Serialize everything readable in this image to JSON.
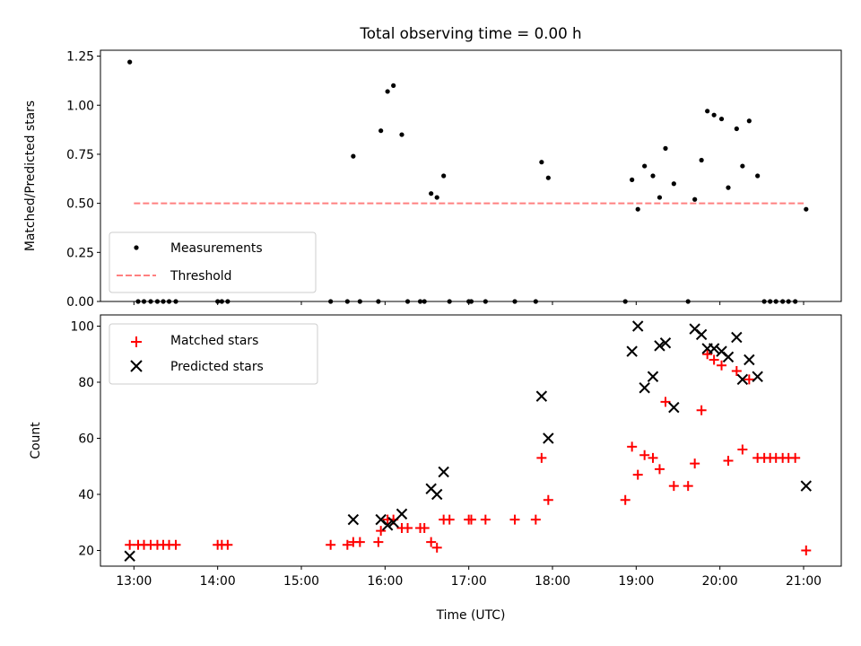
{
  "chart_data": [
    {
      "type": "scatter",
      "title": "Total observing time = 0.00 h",
      "ylabel": "Matched/Predicted stars",
      "xlabel": "",
      "ylim": [
        0,
        1.28
      ],
      "xlim": [
        12.6,
        21.45
      ],
      "yticks": [
        0,
        0.25,
        0.5,
        0.75,
        1.0,
        1.25
      ],
      "ytick_labels": [
        "0.00",
        "0.25",
        "0.50",
        "0.75",
        "1.00",
        "1.25"
      ],
      "xticks": [
        13,
        14,
        15,
        16,
        17,
        18,
        19,
        20,
        21
      ],
      "show_xtick_labels": false,
      "legend": {
        "position": "lower-left",
        "entries": [
          {
            "label": "Measurements",
            "marker": "dot",
            "color": "#000000"
          },
          {
            "label": "Threshold",
            "marker": "dashed-line",
            "color": "#ff8080"
          }
        ]
      },
      "threshold": {
        "y": 0.5,
        "x": [
          13,
          21
        ],
        "color": "#ff8080"
      },
      "series": [
        {
          "name": "Measurements",
          "color": "#000000",
          "x": [
            12.95,
            13.05,
            13.12,
            13.2,
            13.28,
            13.35,
            13.42,
            13.5,
            14.0,
            14.05,
            14.12,
            15.35,
            15.55,
            15.62,
            15.7,
            15.92,
            15.95,
            16.03,
            16.1,
            16.2,
            16.27,
            16.42,
            16.47,
            16.55,
            16.62,
            16.7,
            16.77,
            17.0,
            17.03,
            17.2,
            17.55,
            17.8,
            17.87,
            17.95,
            18.87,
            18.95,
            19.02,
            19.1,
            19.2,
            19.28,
            19.35,
            19.45,
            19.62,
            19.7,
            19.78,
            19.85,
            19.93,
            20.02,
            20.1,
            20.2,
            20.27,
            20.35,
            20.45,
            20.53,
            20.6,
            20.67,
            20.75,
            20.82,
            20.9,
            21.03
          ],
          "y": [
            1.22,
            0,
            0,
            0,
            0,
            0,
            0,
            0,
            0,
            0,
            0,
            0,
            0,
            0.74,
            0,
            0,
            0.87,
            1.07,
            1.1,
            0.85,
            0,
            0,
            0,
            0.55,
            0.53,
            0.64,
            0,
            0,
            0,
            0,
            0,
            0,
            0.71,
            0.63,
            0,
            0.62,
            0.47,
            0.69,
            0.64,
            0.53,
            0.78,
            0.6,
            0,
            0.52,
            0.72,
            0.97,
            0.95,
            0.93,
            0.58,
            0.88,
            0.69,
            0.92,
            0.64,
            0,
            0,
            0,
            0,
            0,
            0,
            0.47
          ]
        }
      ]
    },
    {
      "type": "scatter",
      "title": "",
      "ylabel": "Count",
      "xlabel": "Time (UTC)",
      "ylim": [
        14.4,
        104
      ],
      "xlim": [
        12.6,
        21.45
      ],
      "yticks": [
        20,
        40,
        60,
        80,
        100
      ],
      "xticks": [
        13,
        14,
        15,
        16,
        17,
        18,
        19,
        20,
        21
      ],
      "xtick_labels": [
        "13:00",
        "14:00",
        "15:00",
        "16:00",
        "17:00",
        "18:00",
        "19:00",
        "20:00",
        "21:00"
      ],
      "legend": {
        "position": "upper-left",
        "entries": [
          {
            "label": "Matched stars",
            "marker": "plus",
            "color": "#ff0000"
          },
          {
            "label": "Predicted stars",
            "marker": "x",
            "color": "#000000"
          }
        ]
      },
      "series": [
        {
          "name": "Matched stars",
          "marker": "plus",
          "color": "#ff0000",
          "x": [
            12.95,
            13.05,
            13.12,
            13.2,
            13.28,
            13.35,
            13.42,
            13.5,
            14.0,
            14.05,
            14.12,
            15.35,
            15.55,
            15.62,
            15.7,
            15.92,
            15.95,
            16.03,
            16.1,
            16.2,
            16.27,
            16.42,
            16.47,
            16.55,
            16.62,
            16.7,
            16.77,
            17.0,
            17.03,
            17.2,
            17.55,
            17.8,
            17.87,
            17.95,
            18.87,
            18.95,
            19.02,
            19.1,
            19.2,
            19.28,
            19.35,
            19.45,
            19.62,
            19.7,
            19.78,
            19.85,
            19.93,
            20.02,
            20.1,
            20.2,
            20.27,
            20.35,
            20.45,
            20.53,
            20.6,
            20.67,
            20.75,
            20.82,
            20.9,
            21.03
          ],
          "y": [
            22,
            22,
            22,
            22,
            22,
            22,
            22,
            22,
            22,
            22,
            22,
            22,
            22,
            23,
            23,
            23,
            27,
            31,
            31,
            28,
            28,
            28,
            28,
            23,
            21,
            31,
            31,
            31,
            31,
            31,
            31,
            31,
            53,
            38,
            38,
            57,
            47,
            54,
            53,
            49,
            73,
            43,
            43,
            51,
            70,
            90,
            88,
            86,
            52,
            84,
            56,
            81,
            53,
            53,
            53,
            53,
            53,
            53,
            53,
            20
          ]
        },
        {
          "name": "Predicted stars",
          "marker": "x",
          "color": "#000000",
          "x": [
            12.95,
            15.62,
            15.95,
            16.03,
            16.1,
            16.2,
            16.55,
            16.62,
            16.7,
            17.87,
            17.95,
            18.95,
            19.02,
            19.1,
            19.2,
            19.28,
            19.35,
            19.45,
            19.7,
            19.78,
            19.85,
            19.93,
            20.02,
            20.1,
            20.2,
            20.27,
            20.35,
            20.45,
            21.03
          ],
          "y": [
            18,
            31,
            31,
            29,
            30,
            33,
            42,
            40,
            48,
            75,
            60,
            91,
            100,
            78,
            82,
            93,
            94,
            71,
            99,
            97,
            92,
            92,
            91,
            89,
            96,
            81,
            88,
            82,
            43
          ]
        }
      ]
    }
  ]
}
